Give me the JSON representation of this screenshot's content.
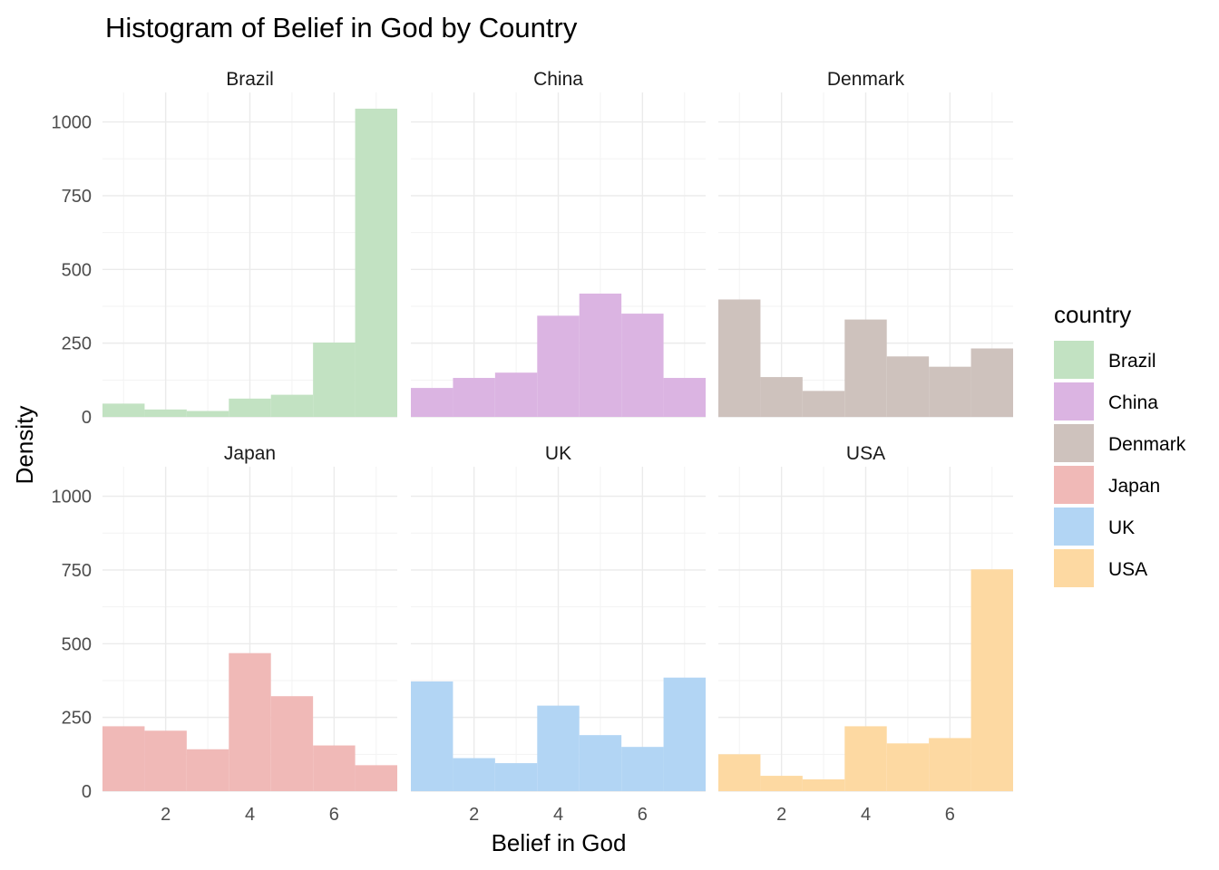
{
  "chart_data": {
    "type": "bar",
    "title": "Histogram of Belief in God by Country",
    "xlabel": "Belief in God",
    "ylabel": "Density",
    "xlim": [
      0.5,
      7.5
    ],
    "ylim": [
      0,
      1100
    ],
    "x_ticks": [
      2,
      4,
      6
    ],
    "y_ticks": [
      0,
      250,
      500,
      750,
      1000
    ],
    "bin_edges": [
      0.5,
      1.5,
      2.5,
      3.5,
      4.5,
      5.5,
      6.5,
      7.5
    ],
    "grid": true,
    "legend": {
      "title": "country",
      "position": "right"
    },
    "facets": [
      {
        "name": "Brazil",
        "color": "#C2E2C2",
        "values": [
          45,
          25,
          20,
          62,
          75,
          252,
          1045
        ]
      },
      {
        "name": "China",
        "color": "#DBB4E2",
        "values": [
          98,
          132,
          150,
          343,
          418,
          350,
          132
        ]
      },
      {
        "name": "Denmark",
        "color": "#CEC2BD",
        "values": [
          398,
          135,
          88,
          330,
          205,
          170,
          232
        ]
      },
      {
        "name": "Japan",
        "color": "#F0B9B7",
        "values": [
          220,
          205,
          142,
          468,
          322,
          155,
          88
        ]
      },
      {
        "name": "UK",
        "color": "#B2D5F4",
        "values": [
          372,
          112,
          95,
          290,
          190,
          150,
          385
        ]
      },
      {
        "name": "USA",
        "color": "#FDD9A2",
        "values": [
          125,
          52,
          40,
          220,
          162,
          180,
          752
        ]
      }
    ]
  }
}
